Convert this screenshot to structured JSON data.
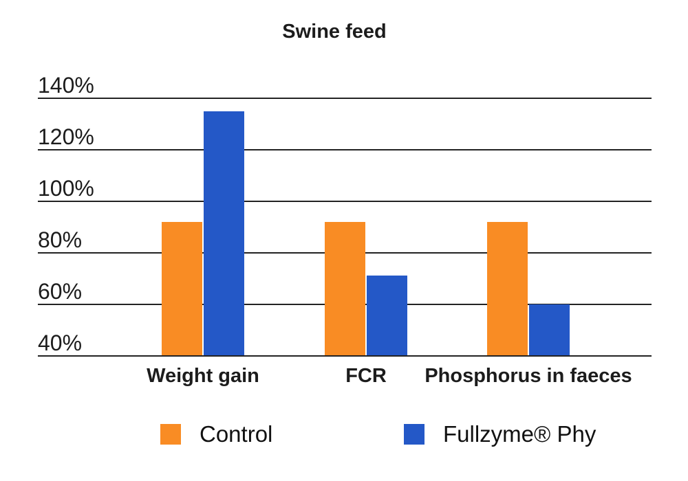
{
  "chart_data": {
    "type": "bar",
    "title": "Swine feed",
    "categories": [
      "Weight gain",
      "FCR",
      "Phosphorus in faeces"
    ],
    "series": [
      {
        "name": "Control",
        "color": "#F98C24",
        "values": [
          92,
          92,
          92
        ]
      },
      {
        "name": "Fullzyme® Phy",
        "color": "#2458C7",
        "values": [
          135,
          71,
          60
        ]
      }
    ],
    "xlabel": "",
    "ylabel": "",
    "ylim": [
      40,
      140
    ],
    "yticks": [
      140,
      120,
      100,
      80,
      60,
      40
    ],
    "ytick_suffix": "%",
    "grid": "horizontal",
    "gridline_color": "#222222",
    "text_color": "#1c1c1c",
    "legend_position": "bottom"
  },
  "legend": {
    "control_label": "Control",
    "fullzyme_label": "Fullzyme® Phy"
  }
}
